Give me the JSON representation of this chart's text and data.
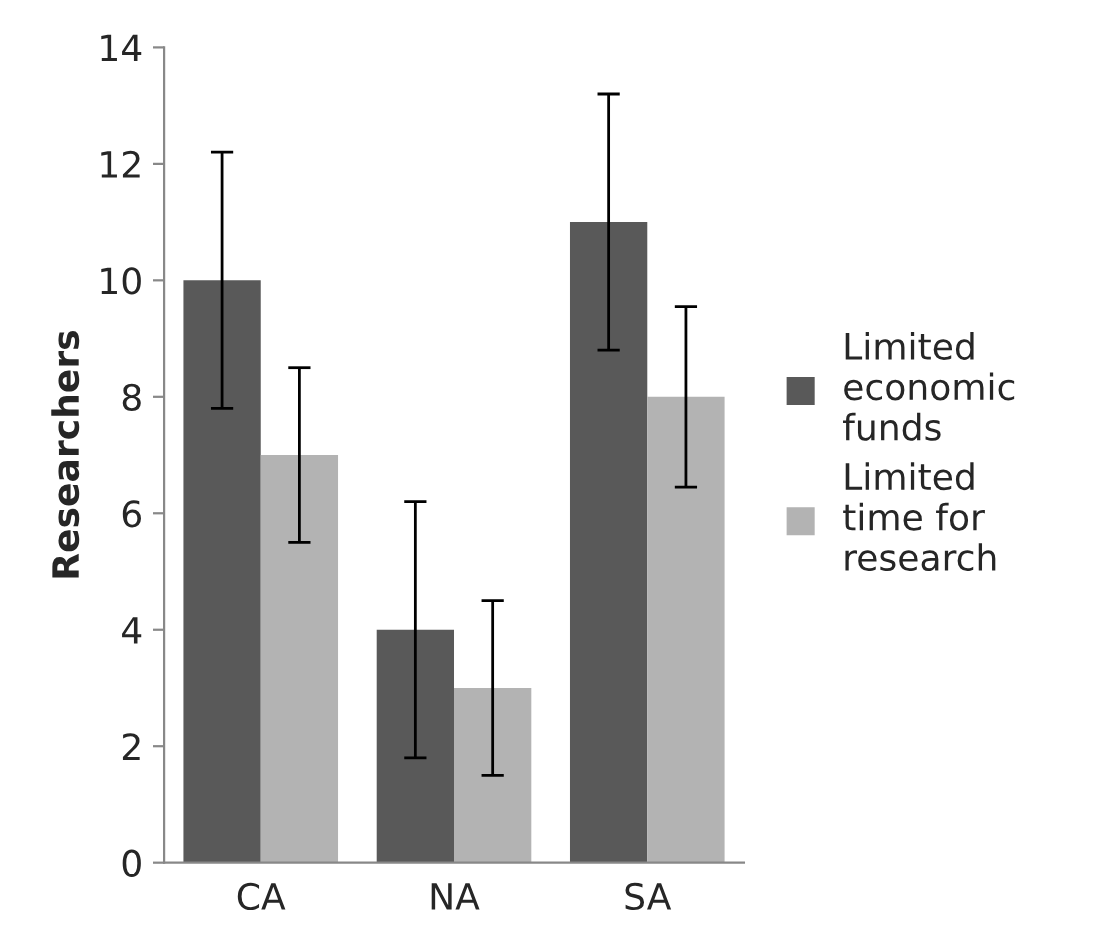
{
  "chart_data": {
    "type": "bar",
    "ylabel": "Researchers",
    "categories": [
      "CA",
      "NA",
      "SA"
    ],
    "series": [
      {
        "name": "Limited\neconomic\nfunds",
        "color": "#595959",
        "values": [
          10,
          4,
          11
        ],
        "errors": [
          2.2,
          2.2,
          2.2
        ]
      },
      {
        "name": "Limited\ntime for\nresearch",
        "color": "#b3b3b3",
        "values": [
          7,
          3,
          8
        ],
        "errors": [
          1.5,
          1.5,
          1.55
        ]
      }
    ],
    "ylim": [
      0,
      14
    ],
    "yticks": [
      0,
      2,
      4,
      6,
      8,
      10,
      12,
      14
    ],
    "grid": false,
    "legend": "right"
  }
}
